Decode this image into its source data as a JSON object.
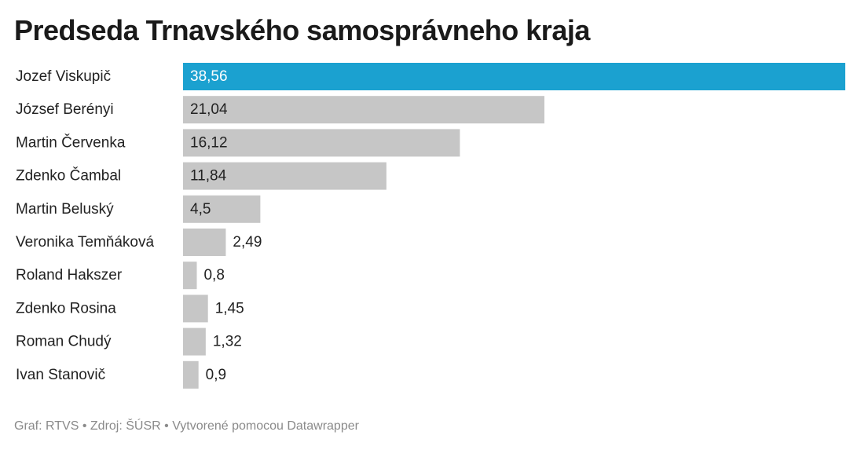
{
  "title": "Predseda Trnavského samosprávneho kraja",
  "footer": {
    "graf": "Graf: RTVS",
    "zdroj": "Zdroj: ŠÚSR",
    "tool": "Vytvorené pomocou Datawrapper",
    "separator": " • "
  },
  "colors": {
    "highlight": "#1ba1d0",
    "default_bar": "#c6c6c6",
    "label_on_highlight": "#ffffff",
    "label_default": "#222222"
  },
  "chart_data": {
    "type": "bar",
    "orientation": "horizontal",
    "title": "Predseda Trnavského samosprávneho kraja",
    "xlabel": "",
    "ylabel": "",
    "xlim": [
      0,
      38.56
    ],
    "grid": false,
    "legend": "none",
    "categories": [
      "Jozef Viskupič",
      "József Berényi",
      "Martin Červenka",
      "Zdenko Čambal",
      "Martin Beluský",
      "Veronika Temňáková",
      "Roland Hakszer",
      "Zdenko Rosina",
      "Roman Chudý",
      "Ivan Stanovič"
    ],
    "values": [
      38.56,
      21.04,
      16.12,
      11.84,
      4.5,
      2.49,
      0.8,
      1.45,
      1.32,
      0.9
    ],
    "value_labels": [
      "38,56",
      "21,04",
      "16,12",
      "11,84",
      "4,5",
      "2,49",
      "0,8",
      "1,45",
      "1,32",
      "0,9"
    ],
    "highlighted": [
      "Jozef Viskupič"
    ]
  }
}
